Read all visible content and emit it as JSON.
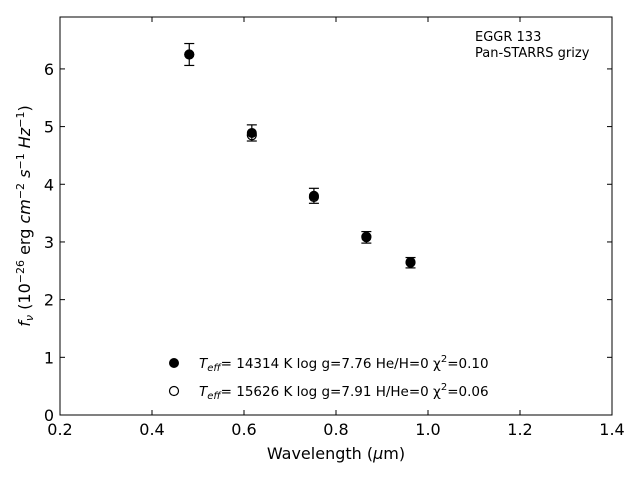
{
  "chart_data": {
    "type": "scatter",
    "xlabel": "Wavelength (μm)",
    "ylabel": "f_ν (10^-26 erg cm^-2 s^-1 Hz^-1)",
    "xlim": [
      0.2,
      1.4
    ],
    "ylim": [
      0,
      6.9
    ],
    "xticks": [
      "0.2",
      "0.4",
      "0.6",
      "0.8",
      "1.0",
      "1.2",
      "1.4"
    ],
    "yticks": [
      "0",
      "1",
      "2",
      "3",
      "4",
      "5",
      "6"
    ],
    "grid": false,
    "annotation": [
      "EGGR 133",
      "Pan-STARRS grizy"
    ],
    "series": [
      {
        "name": "Teff= 14314 K  log g=7.76  He/H=0  χ2=0.10",
        "marker": "filled-circle",
        "x": [
          0.481,
          0.617,
          0.752,
          0.866,
          0.962
        ],
        "y": [
          6.25,
          4.89,
          3.8,
          3.08,
          2.64
        ],
        "err": [
          0.19,
          0.14,
          0.13,
          0.1,
          0.09
        ]
      },
      {
        "name": "Teff= 15626 K  log g=7.91  H/He=0  χ2=0.06",
        "marker": "open-circle",
        "x": [
          0.481,
          0.617,
          0.752,
          0.866,
          0.962
        ],
        "y": [
          6.25,
          4.85,
          3.78,
          3.09,
          2.65
        ]
      }
    ],
    "legend": {
      "placement": "lower-center",
      "entries": [
        {
          "teff_label": "T",
          "teff_sub": "eff",
          "teff_rest": "= 14314 K  log g=7.76  He/H=0  χ",
          "chi_sup": "2",
          "chi_rest": "=0.10"
        },
        {
          "teff_label": "T",
          "teff_sub": "eff",
          "teff_rest": "= 15626 K  log g=7.91  H/He=0  χ",
          "chi_sup": "2",
          "chi_rest": "=0.06"
        }
      ]
    }
  }
}
